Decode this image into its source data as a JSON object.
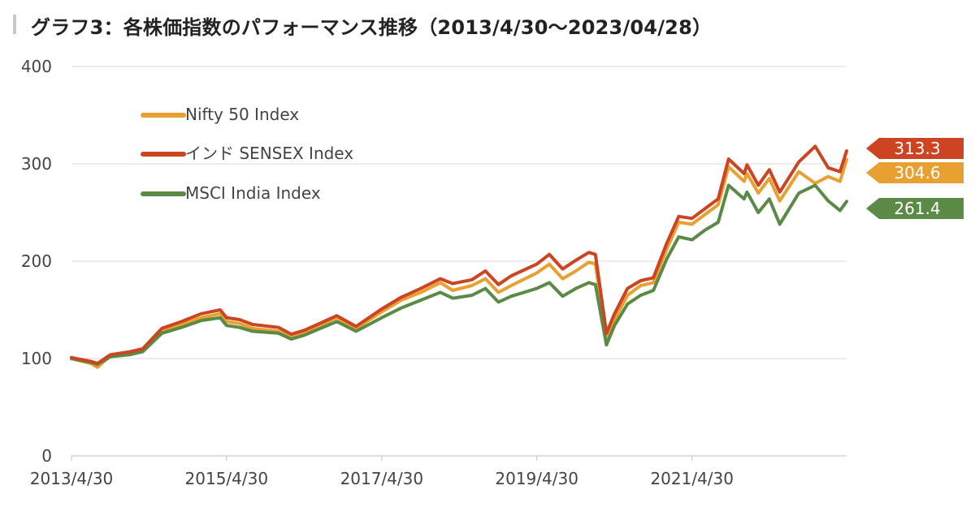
{
  "title": "グラフ3：各株価指数のパフォーマンス推移（2013/4/30〜2023/04/28）",
  "chart_data": {
    "type": "line",
    "title": "グラフ3：各株価指数のパフォーマンス推移（2013/4/30〜2023/04/28）",
    "xlabel": "",
    "ylabel": "",
    "ylim": [
      0,
      400
    ],
    "yticks": [
      "0",
      "100",
      "200",
      "300",
      "400"
    ],
    "xlim": [
      "2013/4/30",
      "2023/4/28"
    ],
    "xticks": [
      "2013/4/30",
      "2015/4/30",
      "2017/4/30",
      "2019/4/30",
      "2021/4/30"
    ],
    "grid": true,
    "legend_position": "top-left",
    "x": [
      "2013/4/30",
      "2013/7/31",
      "2013/8/30",
      "2013/10/31",
      "2014/1/31",
      "2014/3/31",
      "2014/6/30",
      "2014/9/30",
      "2014/12/31",
      "2015/3/31",
      "2015/4/30",
      "2015/6/30",
      "2015/8/31",
      "2015/12/31",
      "2016/2/29",
      "2016/4/30",
      "2016/9/30",
      "2016/12/30",
      "2017/4/30",
      "2017/7/31",
      "2017/10/31",
      "2018/1/31",
      "2018/3/30",
      "2018/6/29",
      "2018/8/31",
      "2018/10/31",
      "2018/12/31",
      "2019/4/30",
      "2019/6/28",
      "2019/8/30",
      "2019/10/31",
      "2019/12/31",
      "2020/1/31",
      "2020/3/23",
      "2020/4/30",
      "2020/6/30",
      "2020/8/31",
      "2020/10/30",
      "2020/12/31",
      "2021/2/26",
      "2021/4/30",
      "2021/6/30",
      "2021/8/31",
      "2021/10/19",
      "2021/12/31",
      "2022/1/14",
      "2022/3/8",
      "2022/4/29",
      "2022/6/17",
      "2022/9/15",
      "2022/12/1",
      "2023/1/31",
      "2023/3/28",
      "2023/4/28"
    ],
    "series": [
      {
        "name": "Nifty 50 Index",
        "color": "#e8a030",
        "values": [
          100,
          95,
          91,
          103,
          105,
          108,
          129,
          135,
          142,
          146,
          138,
          136,
          131,
          128,
          122,
          127,
          142,
          131,
          148,
          160,
          168,
          178,
          170,
          175,
          182,
          168,
          175,
          188,
          197,
          182,
          190,
          199,
          197,
          120,
          140,
          165,
          175,
          178,
          212,
          240,
          238,
          248,
          258,
          297,
          282,
          290,
          270,
          285,
          262,
          292,
          280,
          287,
          282,
          304.6
        ],
        "end_label": "304.6"
      },
      {
        "name": "インド SENSEX Index",
        "color": "#cc4422",
        "values": [
          101,
          97,
          95,
          104,
          107,
          110,
          131,
          138,
          146,
          150,
          142,
          140,
          135,
          132,
          125,
          129,
          144,
          133,
          151,
          163,
          172,
          182,
          177,
          181,
          190,
          176,
          185,
          197,
          207,
          192,
          201,
          209,
          207,
          126,
          146,
          172,
          180,
          183,
          218,
          246,
          244,
          254,
          264,
          305,
          290,
          299,
          278,
          294,
          271,
          302,
          318,
          296,
          292,
          313.3
        ],
        "end_label": "313.3"
      },
      {
        "name": "MSCI India Index",
        "color": "#5a8a46",
        "values": [
          100,
          96,
          94,
          102,
          104,
          107,
          126,
          132,
          139,
          142,
          134,
          132,
          128,
          126,
          120,
          124,
          138,
          128,
          142,
          152,
          160,
          168,
          162,
          165,
          172,
          158,
          164,
          172,
          178,
          164,
          172,
          178,
          176,
          114,
          134,
          156,
          165,
          170,
          202,
          225,
          222,
          232,
          240,
          278,
          264,
          271,
          250,
          264,
          238,
          270,
          278,
          262,
          252,
          261.4
        ],
        "end_label": "261.4"
      }
    ]
  }
}
